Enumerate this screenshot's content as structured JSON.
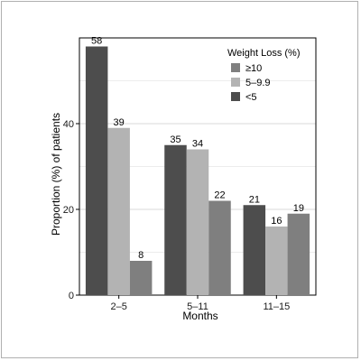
{
  "chart_data": {
    "type": "bar",
    "xlabel": "Months",
    "ylabel": "Proportion (%) of patients",
    "ylim": [
      0,
      60
    ],
    "yticks": [
      0,
      20,
      40
    ],
    "categories": [
      "2–5",
      "5–11",
      "11–15"
    ],
    "legend": {
      "title": "Weight Loss (%)",
      "position": "top-right"
    },
    "series": [
      {
        "name": "<5",
        "color": "#4d4d4d",
        "values": [
          58,
          35,
          21
        ]
      },
      {
        "name": "5–9.9",
        "color": "#b3b3b3",
        "values": [
          39,
          34,
          16
        ]
      },
      {
        "name": "≥10",
        "color": "#7f7f7f",
        "values": [
          8,
          22,
          19
        ]
      }
    ],
    "legend_order": [
      "≥10",
      "5–9.9",
      "<5"
    ],
    "grid": true,
    "data_labels": true
  }
}
